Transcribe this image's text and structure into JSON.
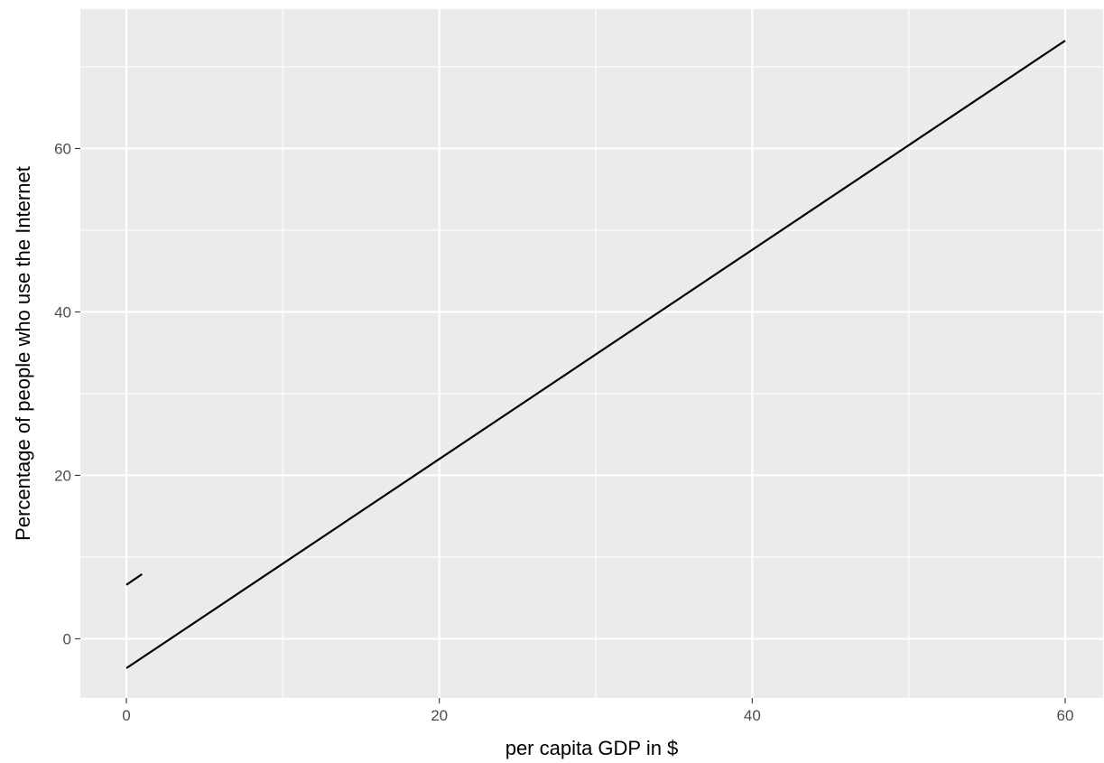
{
  "chart_data": {
    "type": "line",
    "title": "",
    "xlabel": "per capita GDP in $",
    "ylabel": "Percentage of people who use the Internet",
    "xlim": [
      -2.97,
      60.2
    ],
    "ylim": [
      -3.6,
      73.2
    ],
    "x_ticks": [
      0,
      20,
      40,
      60
    ],
    "y_ticks": [
      0,
      20,
      40,
      60
    ],
    "x_minor_ticks": [
      10,
      30,
      50
    ],
    "y_minor_ticks": [
      10,
      30,
      50,
      70
    ],
    "grid": true,
    "legend": "none",
    "panel_color": "#ebebeb",
    "grid_color": "#ffffff",
    "line_color": "#000000",
    "series": [
      {
        "x": [
          0,
          60
        ],
        "y": [
          -3.6,
          73.2
        ]
      },
      {
        "x": [
          0,
          1
        ],
        "y": [
          6.6,
          7.9
        ]
      }
    ]
  }
}
